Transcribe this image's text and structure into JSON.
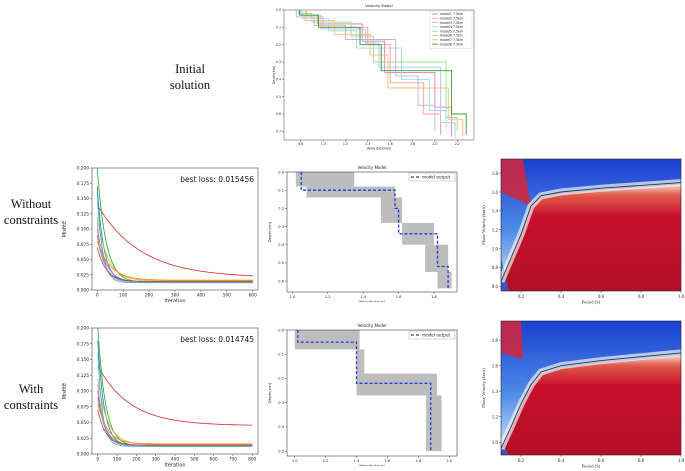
{
  "row_labels": {
    "initial": [
      "Initial",
      "solution"
    ],
    "without": [
      "Without",
      "constraints"
    ],
    "with": [
      "With",
      "constraints"
    ]
  },
  "colors": {
    "gray_band": "#bdbdbd",
    "dashed_blue": "#1f3fd6",
    "heat_red": "#c8102e",
    "heat_blue": "#1e5fd6"
  },
  "chart_data": [
    {
      "id": "initial-velocity-models",
      "type": "line",
      "title": "Velocity Model",
      "xlabel": "Velocity(km/s)",
      "ylabel": "Depth(km)",
      "xticks": [
        "0.8",
        "1.0",
        "1.2",
        "1.4",
        "1.6",
        "1.8",
        "2.0",
        "2.2"
      ],
      "yticks": [
        "0.0",
        "0.1",
        "0.2",
        "0.3",
        "0.4",
        "0.5",
        "0.6",
        "0.7"
      ],
      "xlim": [
        0.65,
        2.35
      ],
      "ylim": [
        0,
        0.75
      ],
      "legend": [
        "model1 7.5km",
        "model2 7.5km",
        "model3 7.5km",
        "model4 7.5km",
        "model5 7.5km",
        "model6 7.5km",
        "model7 7.5km",
        "model8 7.5km"
      ],
      "series": [
        {
          "name": "model1",
          "color": "#e377c2",
          "steps": [
            [
              0.8,
              0
            ],
            [
              0.8,
              0.03
            ],
            [
              0.95,
              0.03
            ],
            [
              0.95,
              0.08
            ],
            [
              1.35,
              0.08
            ],
            [
              1.35,
              0.18
            ],
            [
              1.55,
              0.18
            ],
            [
              1.55,
              0.36
            ],
            [
              2.0,
              0.36
            ],
            [
              2.0,
              0.56
            ],
            [
              2.15,
              0.56
            ],
            [
              2.15,
              0.73
            ]
          ]
        },
        {
          "name": "model2",
          "color": "#ff9896",
          "steps": [
            [
              0.85,
              0
            ],
            [
              0.85,
              0.04
            ],
            [
              1.0,
              0.04
            ],
            [
              1.0,
              0.1
            ],
            [
              1.4,
              0.1
            ],
            [
              1.4,
              0.2
            ],
            [
              1.6,
              0.2
            ],
            [
              1.6,
              0.42
            ],
            [
              1.9,
              0.42
            ],
            [
              1.9,
              0.6
            ],
            [
              2.05,
              0.6
            ],
            [
              2.05,
              0.72
            ]
          ]
        },
        {
          "name": "model3",
          "color": "#98df8a",
          "steps": [
            [
              0.78,
              0
            ],
            [
              0.78,
              0.02
            ],
            [
              0.9,
              0.02
            ],
            [
              0.9,
              0.07
            ],
            [
              1.25,
              0.07
            ],
            [
              1.25,
              0.15
            ],
            [
              1.45,
              0.15
            ],
            [
              1.45,
              0.3
            ],
            [
              2.1,
              0.3
            ],
            [
              2.1,
              0.62
            ],
            [
              2.2,
              0.62
            ],
            [
              2.2,
              0.7
            ]
          ]
        },
        {
          "name": "model4",
          "color": "#9edae5",
          "steps": [
            [
              0.82,
              0
            ],
            [
              0.82,
              0.05
            ],
            [
              1.05,
              0.05
            ],
            [
              1.05,
              0.12
            ],
            [
              1.3,
              0.12
            ],
            [
              1.3,
              0.22
            ],
            [
              1.7,
              0.22
            ],
            [
              1.7,
              0.4
            ],
            [
              1.95,
              0.4
            ],
            [
              1.95,
              0.58
            ],
            [
              2.1,
              0.58
            ],
            [
              2.1,
              0.68
            ]
          ]
        },
        {
          "name": "model5",
          "color": "#aec7e8",
          "steps": [
            [
              0.8,
              0
            ],
            [
              0.8,
              0.03
            ],
            [
              0.98,
              0.03
            ],
            [
              0.98,
              0.11
            ],
            [
              1.38,
              0.11
            ],
            [
              1.38,
              0.19
            ],
            [
              1.5,
              0.19
            ],
            [
              1.5,
              0.33
            ],
            [
              2.05,
              0.33
            ],
            [
              2.05,
              0.65
            ],
            [
              2.18,
              0.65
            ],
            [
              2.18,
              0.74
            ]
          ]
        },
        {
          "name": "model6",
          "color": "#c5b0d5",
          "steps": [
            [
              0.76,
              0
            ],
            [
              0.76,
              0.04
            ],
            [
              0.92,
              0.04
            ],
            [
              0.92,
              0.09
            ],
            [
              1.2,
              0.09
            ],
            [
              1.2,
              0.17
            ],
            [
              1.65,
              0.17
            ],
            [
              1.65,
              0.38
            ],
            [
              1.85,
              0.38
            ],
            [
              1.85,
              0.55
            ],
            [
              2.0,
              0.55
            ],
            [
              2.0,
              0.7
            ]
          ]
        },
        {
          "name": "model7",
          "color": "#ffbb78",
          "steps": [
            [
              0.84,
              0
            ],
            [
              0.84,
              0.06
            ],
            [
              1.1,
              0.06
            ],
            [
              1.1,
              0.14
            ],
            [
              1.42,
              0.14
            ],
            [
              1.42,
              0.26
            ],
            [
              1.58,
              0.26
            ],
            [
              1.58,
              0.45
            ],
            [
              2.12,
              0.45
            ],
            [
              2.12,
              0.63
            ],
            [
              2.25,
              0.63
            ],
            [
              2.25,
              0.73
            ]
          ]
        },
        {
          "name": "model8",
          "color": "#2ca02c",
          "steps": [
            [
              0.79,
              0
            ],
            [
              0.79,
              0.03
            ],
            [
              0.96,
              0.03
            ],
            [
              0.96,
              0.1
            ],
            [
              1.33,
              0.1
            ],
            [
              1.33,
              0.2
            ],
            [
              1.52,
              0.2
            ],
            [
              1.52,
              0.35
            ],
            [
              2.15,
              0.35
            ],
            [
              2.15,
              0.6
            ],
            [
              2.28,
              0.6
            ],
            [
              2.28,
              0.72
            ]
          ]
        }
      ]
    },
    {
      "id": "without-loss",
      "type": "line",
      "xlabel": "Iteration",
      "ylabel": "MisfitE",
      "xticks": [
        "0",
        "100",
        "200",
        "300",
        "400",
        "500",
        "600"
      ],
      "yticks": [
        "0.000",
        "0.025",
        "0.050",
        "0.075",
        "0.100",
        "0.125",
        "0.150",
        "0.175",
        "0.200"
      ],
      "xlim": [
        -20,
        620
      ],
      "ylim": [
        0,
        0.2
      ],
      "annotation": "best loss: 0.015456",
      "series": [
        {
          "name": "red",
          "color": "#d62728",
          "start": 0.14,
          "end": 0.02,
          "rate": 0.006
        },
        {
          "name": "green",
          "color": "#2ca02c",
          "start": 0.2,
          "end": 0.012,
          "rate": 0.03
        },
        {
          "name": "blue",
          "color": "#1f77b4",
          "start": 0.17,
          "end": 0.013,
          "rate": 0.04
        },
        {
          "name": "olive",
          "color": "#bcbd22",
          "start": 0.12,
          "end": 0.015,
          "rate": 0.025
        },
        {
          "name": "purple",
          "color": "#9467bd",
          "start": 0.1,
          "end": 0.013,
          "rate": 0.03
        },
        {
          "name": "gray",
          "color": "#7f7f7f",
          "start": 0.09,
          "end": 0.014,
          "rate": 0.035
        },
        {
          "name": "cyan",
          "color": "#17becf",
          "start": 0.16,
          "end": 0.012,
          "rate": 0.05
        },
        {
          "name": "orange",
          "color": "#ff7f0e",
          "start": 0.08,
          "end": 0.016,
          "rate": 0.02
        },
        {
          "name": "pink",
          "color": "#e377c2",
          "start": 0.11,
          "end": 0.013,
          "rate": 0.04
        },
        {
          "name": "brown",
          "color": "#8c564b",
          "start": 0.07,
          "end": 0.014,
          "rate": 0.03
        }
      ]
    },
    {
      "id": "without-velocity",
      "type": "line",
      "title": "Velocity Model",
      "xlabel": "Velocity(km/s)",
      "ylabel": "Depth(km)",
      "xticks": [
        "1.0",
        "1.2",
        "1.4",
        "1.6",
        "1.8"
      ],
      "yticks": [
        "0.0",
        "0.1",
        "0.2",
        "0.3",
        "0.4",
        "0.5",
        "0.6"
      ],
      "xlim": [
        0.97,
        1.93
      ],
      "ylim": [
        0,
        0.66
      ],
      "legend": [
        "model output"
      ],
      "band_steps": [
        [
          1.02,
          1.35,
          0.0,
          0.08
        ],
        [
          1.08,
          1.58,
          0.08,
          0.14
        ],
        [
          1.5,
          1.62,
          0.14,
          0.28
        ],
        [
          1.62,
          1.8,
          0.28,
          0.4
        ],
        [
          1.75,
          1.88,
          0.4,
          0.55
        ],
        [
          1.82,
          1.9,
          0.55,
          0.64
        ]
      ],
      "output_steps": [
        [
          1.05,
          0
        ],
        [
          1.05,
          0.1
        ],
        [
          1.58,
          0.1
        ],
        [
          1.58,
          0.2
        ],
        [
          1.6,
          0.2
        ],
        [
          1.6,
          0.34
        ],
        [
          1.82,
          0.34
        ],
        [
          1.82,
          0.52
        ],
        [
          1.88,
          0.52
        ],
        [
          1.88,
          0.64
        ]
      ]
    },
    {
      "id": "without-dispersion",
      "type": "heatmap",
      "xlabel": "Period (S)",
      "ylabel": "Phase Velocity (km/s)",
      "xticks": [
        "0.2",
        "0.4",
        "0.6",
        "0.8",
        "1.0"
      ],
      "yticks": [
        "0.6",
        "0.8",
        "1.0",
        "1.2",
        "1.4",
        "1.6",
        "1.8"
      ],
      "xlim": [
        0.1,
        1.0
      ],
      "ylim": [
        0.55,
        1.95
      ],
      "curve": [
        [
          0.1,
          0.65
        ],
        [
          0.15,
          0.9
        ],
        [
          0.2,
          1.15
        ],
        [
          0.25,
          1.45
        ],
        [
          0.3,
          1.56
        ],
        [
          0.4,
          1.6
        ],
        [
          0.6,
          1.64
        ],
        [
          0.8,
          1.67
        ],
        [
          1.0,
          1.7
        ]
      ]
    },
    {
      "id": "with-loss",
      "type": "line",
      "xlabel": "Iteration",
      "ylabel": "MisfitE",
      "xticks": [
        "0",
        "100",
        "200",
        "300",
        "400",
        "500",
        "600",
        "700",
        "800"
      ],
      "yticks": [
        "0.000",
        "0.025",
        "0.050",
        "0.075",
        "0.100",
        "0.125",
        "0.150",
        "0.175",
        "0.200"
      ],
      "xlim": [
        -30,
        830
      ],
      "ylim": [
        0,
        0.2
      ],
      "annotation": "best loss: 0.014745",
      "series": [
        {
          "name": "red",
          "color": "#d62728",
          "start": 0.14,
          "end": 0.045,
          "rate": 0.006
        },
        {
          "name": "green",
          "color": "#2ca02c",
          "start": 0.2,
          "end": 0.012,
          "rate": 0.025
        },
        {
          "name": "blue",
          "color": "#1f77b4",
          "start": 0.18,
          "end": 0.013,
          "rate": 0.03
        },
        {
          "name": "olive",
          "color": "#bcbd22",
          "start": 0.12,
          "end": 0.015,
          "rate": 0.02
        },
        {
          "name": "purple",
          "color": "#9467bd",
          "start": 0.1,
          "end": 0.013,
          "rate": 0.03
        },
        {
          "name": "gray",
          "color": "#7f7f7f",
          "start": 0.09,
          "end": 0.014,
          "rate": 0.025
        },
        {
          "name": "cyan",
          "color": "#17becf",
          "start": 0.16,
          "end": 0.012,
          "rate": 0.04
        },
        {
          "name": "orange",
          "color": "#ff7f0e",
          "start": 0.08,
          "end": 0.016,
          "rate": 0.02
        },
        {
          "name": "pink",
          "color": "#e377c2",
          "start": 0.11,
          "end": 0.013,
          "rate": 0.03
        },
        {
          "name": "brown",
          "color": "#8c564b",
          "start": 0.07,
          "end": 0.014,
          "rate": 0.025
        }
      ]
    },
    {
      "id": "with-velocity",
      "type": "line",
      "title": "Velocity Model",
      "xlabel": "Velocity(km/s)",
      "ylabel": "Depth(km)",
      "xticks": [
        "1.0",
        "1.2",
        "1.4",
        "1.6",
        "1.8",
        "2.0"
      ],
      "yticks": [
        "0.0",
        "0.1",
        "0.2",
        "0.3",
        "0.4",
        "0.5"
      ],
      "xlim": [
        0.95,
        2.05
      ],
      "ylim": [
        0,
        0.52
      ],
      "legend": [
        "model output"
      ],
      "band_steps": [
        [
          1.0,
          1.42,
          0.0,
          0.08
        ],
        [
          1.4,
          1.45,
          0.08,
          0.18
        ],
        [
          1.4,
          1.92,
          0.18,
          0.27
        ],
        [
          1.85,
          1.95,
          0.27,
          0.5
        ]
      ],
      "output_steps": [
        [
          1.02,
          0
        ],
        [
          1.02,
          0.05
        ],
        [
          1.4,
          0.05
        ],
        [
          1.4,
          0.22
        ],
        [
          1.88,
          0.22
        ],
        [
          1.88,
          0.5
        ]
      ]
    },
    {
      "id": "with-dispersion",
      "type": "heatmap",
      "xlabel": "Period (S)",
      "ylabel": "Phase Velocity (km/s)",
      "xticks": [
        "0.2",
        "0.4",
        "0.6",
        "0.8",
        "1.0"
      ],
      "yticks": [
        "1.0",
        "1.2",
        "1.4",
        "1.6",
        "1.8"
      ],
      "xlim": [
        0.1,
        1.0
      ],
      "ylim": [
        0.9,
        1.95
      ],
      "curve": [
        [
          0.1,
          0.95
        ],
        [
          0.15,
          1.12
        ],
        [
          0.2,
          1.3
        ],
        [
          0.25,
          1.45
        ],
        [
          0.3,
          1.55
        ],
        [
          0.4,
          1.6
        ],
        [
          0.6,
          1.64
        ],
        [
          0.8,
          1.67
        ],
        [
          1.0,
          1.7
        ]
      ]
    }
  ]
}
